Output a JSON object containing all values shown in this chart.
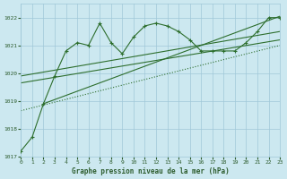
{
  "title": "Graphe pression niveau de la mer (hPa)",
  "bg_color": "#cce8f0",
  "grid_color": "#a0c8d8",
  "line_color": "#2d6e2d",
  "text_color": "#2d5c2d",
  "xlim": [
    0,
    23
  ],
  "ylim": [
    1017,
    1022.5
  ],
  "yticks": [
    1017,
    1018,
    1019,
    1020,
    1021,
    1022
  ],
  "xticks": [
    0,
    1,
    2,
    3,
    4,
    5,
    6,
    7,
    8,
    9,
    10,
    11,
    12,
    13,
    14,
    15,
    16,
    17,
    18,
    19,
    20,
    21,
    22,
    23
  ],
  "main_x": [
    0,
    1,
    2,
    3,
    4,
    5,
    6,
    7,
    8,
    9,
    10,
    11,
    12,
    13,
    14,
    15,
    16,
    17,
    18,
    19,
    20,
    21,
    22,
    23
  ],
  "main_y": [
    1017.2,
    1017.7,
    1018.9,
    1019.9,
    1020.8,
    1021.1,
    1021.0,
    1021.8,
    1021.1,
    1020.7,
    1021.3,
    1021.7,
    1021.8,
    1021.7,
    1021.5,
    1021.2,
    1020.8,
    1020.8,
    1020.8,
    1020.8,
    1021.1,
    1021.5,
    1022.0,
    1022.0
  ],
  "reg_line1": [
    [
      0,
      23
    ],
    [
      1019.9,
      1021.5
    ]
  ],
  "reg_line2": [
    [
      0,
      23
    ],
    [
      1019.65,
      1021.2
    ]
  ],
  "dot_line": [
    [
      0,
      23
    ],
    [
      1018.65,
      1021.0
    ]
  ],
  "diag_line_x": [
    2,
    23
  ],
  "diag_line_y": [
    1018.9,
    1022.05
  ]
}
